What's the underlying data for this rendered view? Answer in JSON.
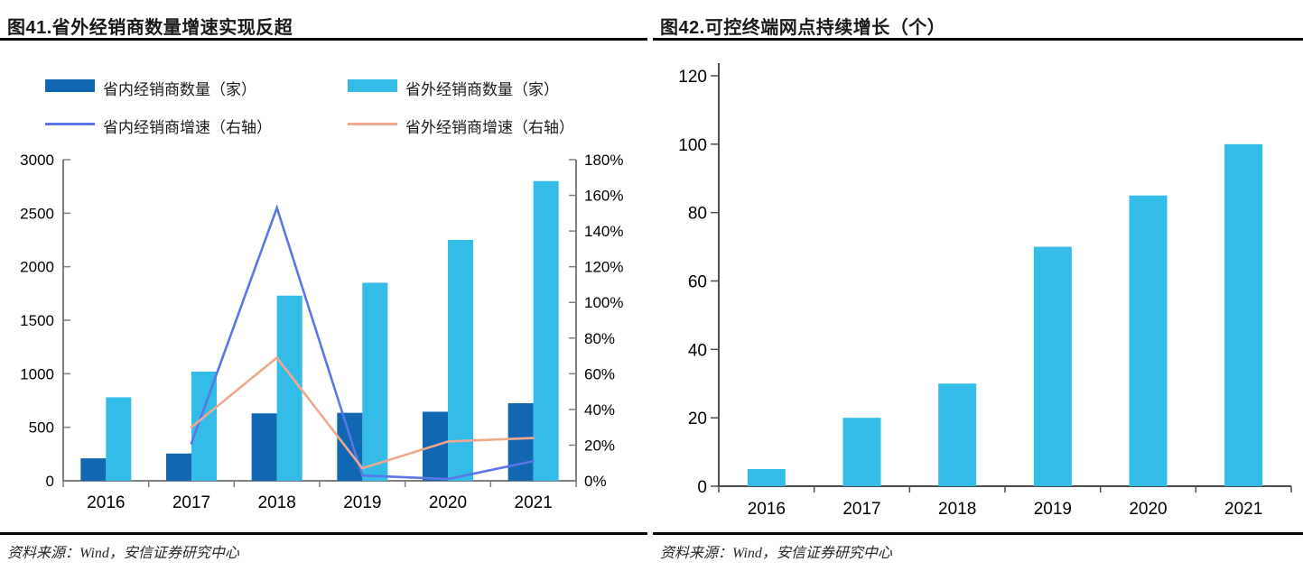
{
  "fig41": {
    "title": "图41.省外经销商数量增速实现反超",
    "source": "资料来源：Wind，安信证券研究中心",
    "legend": [
      {
        "label": "省内经销商数量（家）",
        "type": "bar",
        "color": "#1167B1"
      },
      {
        "label": "省外经销商数量（家）",
        "type": "bar",
        "color": "#33BCE8"
      },
      {
        "label": "省内经销商增速（右轴）",
        "type": "line",
        "color": "#5B76E8"
      },
      {
        "label": "省外经销商增速（右轴）",
        "type": "line",
        "color": "#F0A98C"
      }
    ],
    "chart_data": {
      "type": "combo",
      "categories": [
        "2016",
        "2017",
        "2018",
        "2019",
        "2020",
        "2021"
      ],
      "bar_series": [
        {
          "name": "省内经销商数量（家）",
          "axis": "left",
          "color": "#1167B1",
          "values": [
            210,
            255,
            630,
            635,
            645,
            725
          ]
        },
        {
          "name": "省外经销商数量（家）",
          "axis": "left",
          "color": "#33BCE8",
          "values": [
            780,
            1020,
            1730,
            1850,
            2250,
            2800
          ]
        }
      ],
      "line_series": [
        {
          "name": "省内经销商增速（右轴）",
          "axis": "right",
          "color": "#5B76E8",
          "values": [
            null,
            21,
            153,
            3,
            1,
            11
          ]
        },
        {
          "name": "省外经销商增速（右轴）",
          "axis": "right",
          "color": "#F0A98C",
          "values": [
            null,
            30,
            69,
            7,
            22,
            24
          ]
        }
      ],
      "left_axis": {
        "min": 0,
        "max": 3000,
        "step": 500,
        "suffix": ""
      },
      "right_axis": {
        "min": 0,
        "max": 180,
        "step": 20,
        "suffix": "%"
      },
      "grid": false,
      "legend_position": "top"
    }
  },
  "fig42": {
    "title": "图42.可控终端网点持续增长（个）",
    "source": "资料来源：Wind，安信证券研究中心",
    "chart_data": {
      "type": "bar",
      "categories": [
        "2016",
        "2017",
        "2018",
        "2019",
        "2020",
        "2021"
      ],
      "values": [
        5,
        20,
        30,
        70,
        85,
        100
      ],
      "bar_color": "#33BCE8",
      "y_axis": {
        "min": 0,
        "max": 120,
        "step": 20,
        "suffix": ""
      },
      "grid": false
    }
  }
}
